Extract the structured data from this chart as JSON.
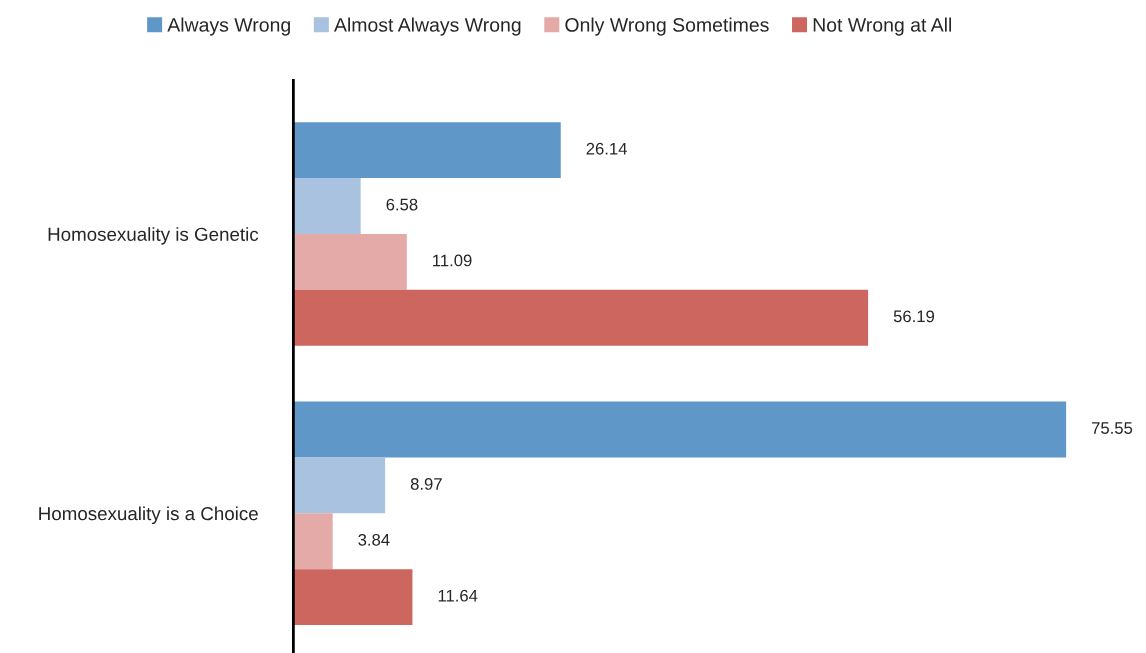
{
  "chart_data": {
    "type": "bar",
    "orientation": "horizontal",
    "categories": [
      "Homosexuality is Genetic",
      "Homosexuality is a Choice"
    ],
    "series": [
      {
        "name": "Always Wrong",
        "color": "#6097c9",
        "values": [
          26.14,
          75.55
        ]
      },
      {
        "name": "Almost Always Wrong",
        "color": "#a8c2e0",
        "values": [
          6.58,
          8.97
        ]
      },
      {
        "name": "Only Wrong Sometimes",
        "color": "#e3aaa8",
        "values": [
          11.09,
          3.84
        ]
      },
      {
        "name": "Not Wrong at All",
        "color": "#cd665e",
        "values": [
          56.19,
          11.64
        ]
      }
    ],
    "data_labels": true,
    "legend": "top",
    "grid": false
  }
}
